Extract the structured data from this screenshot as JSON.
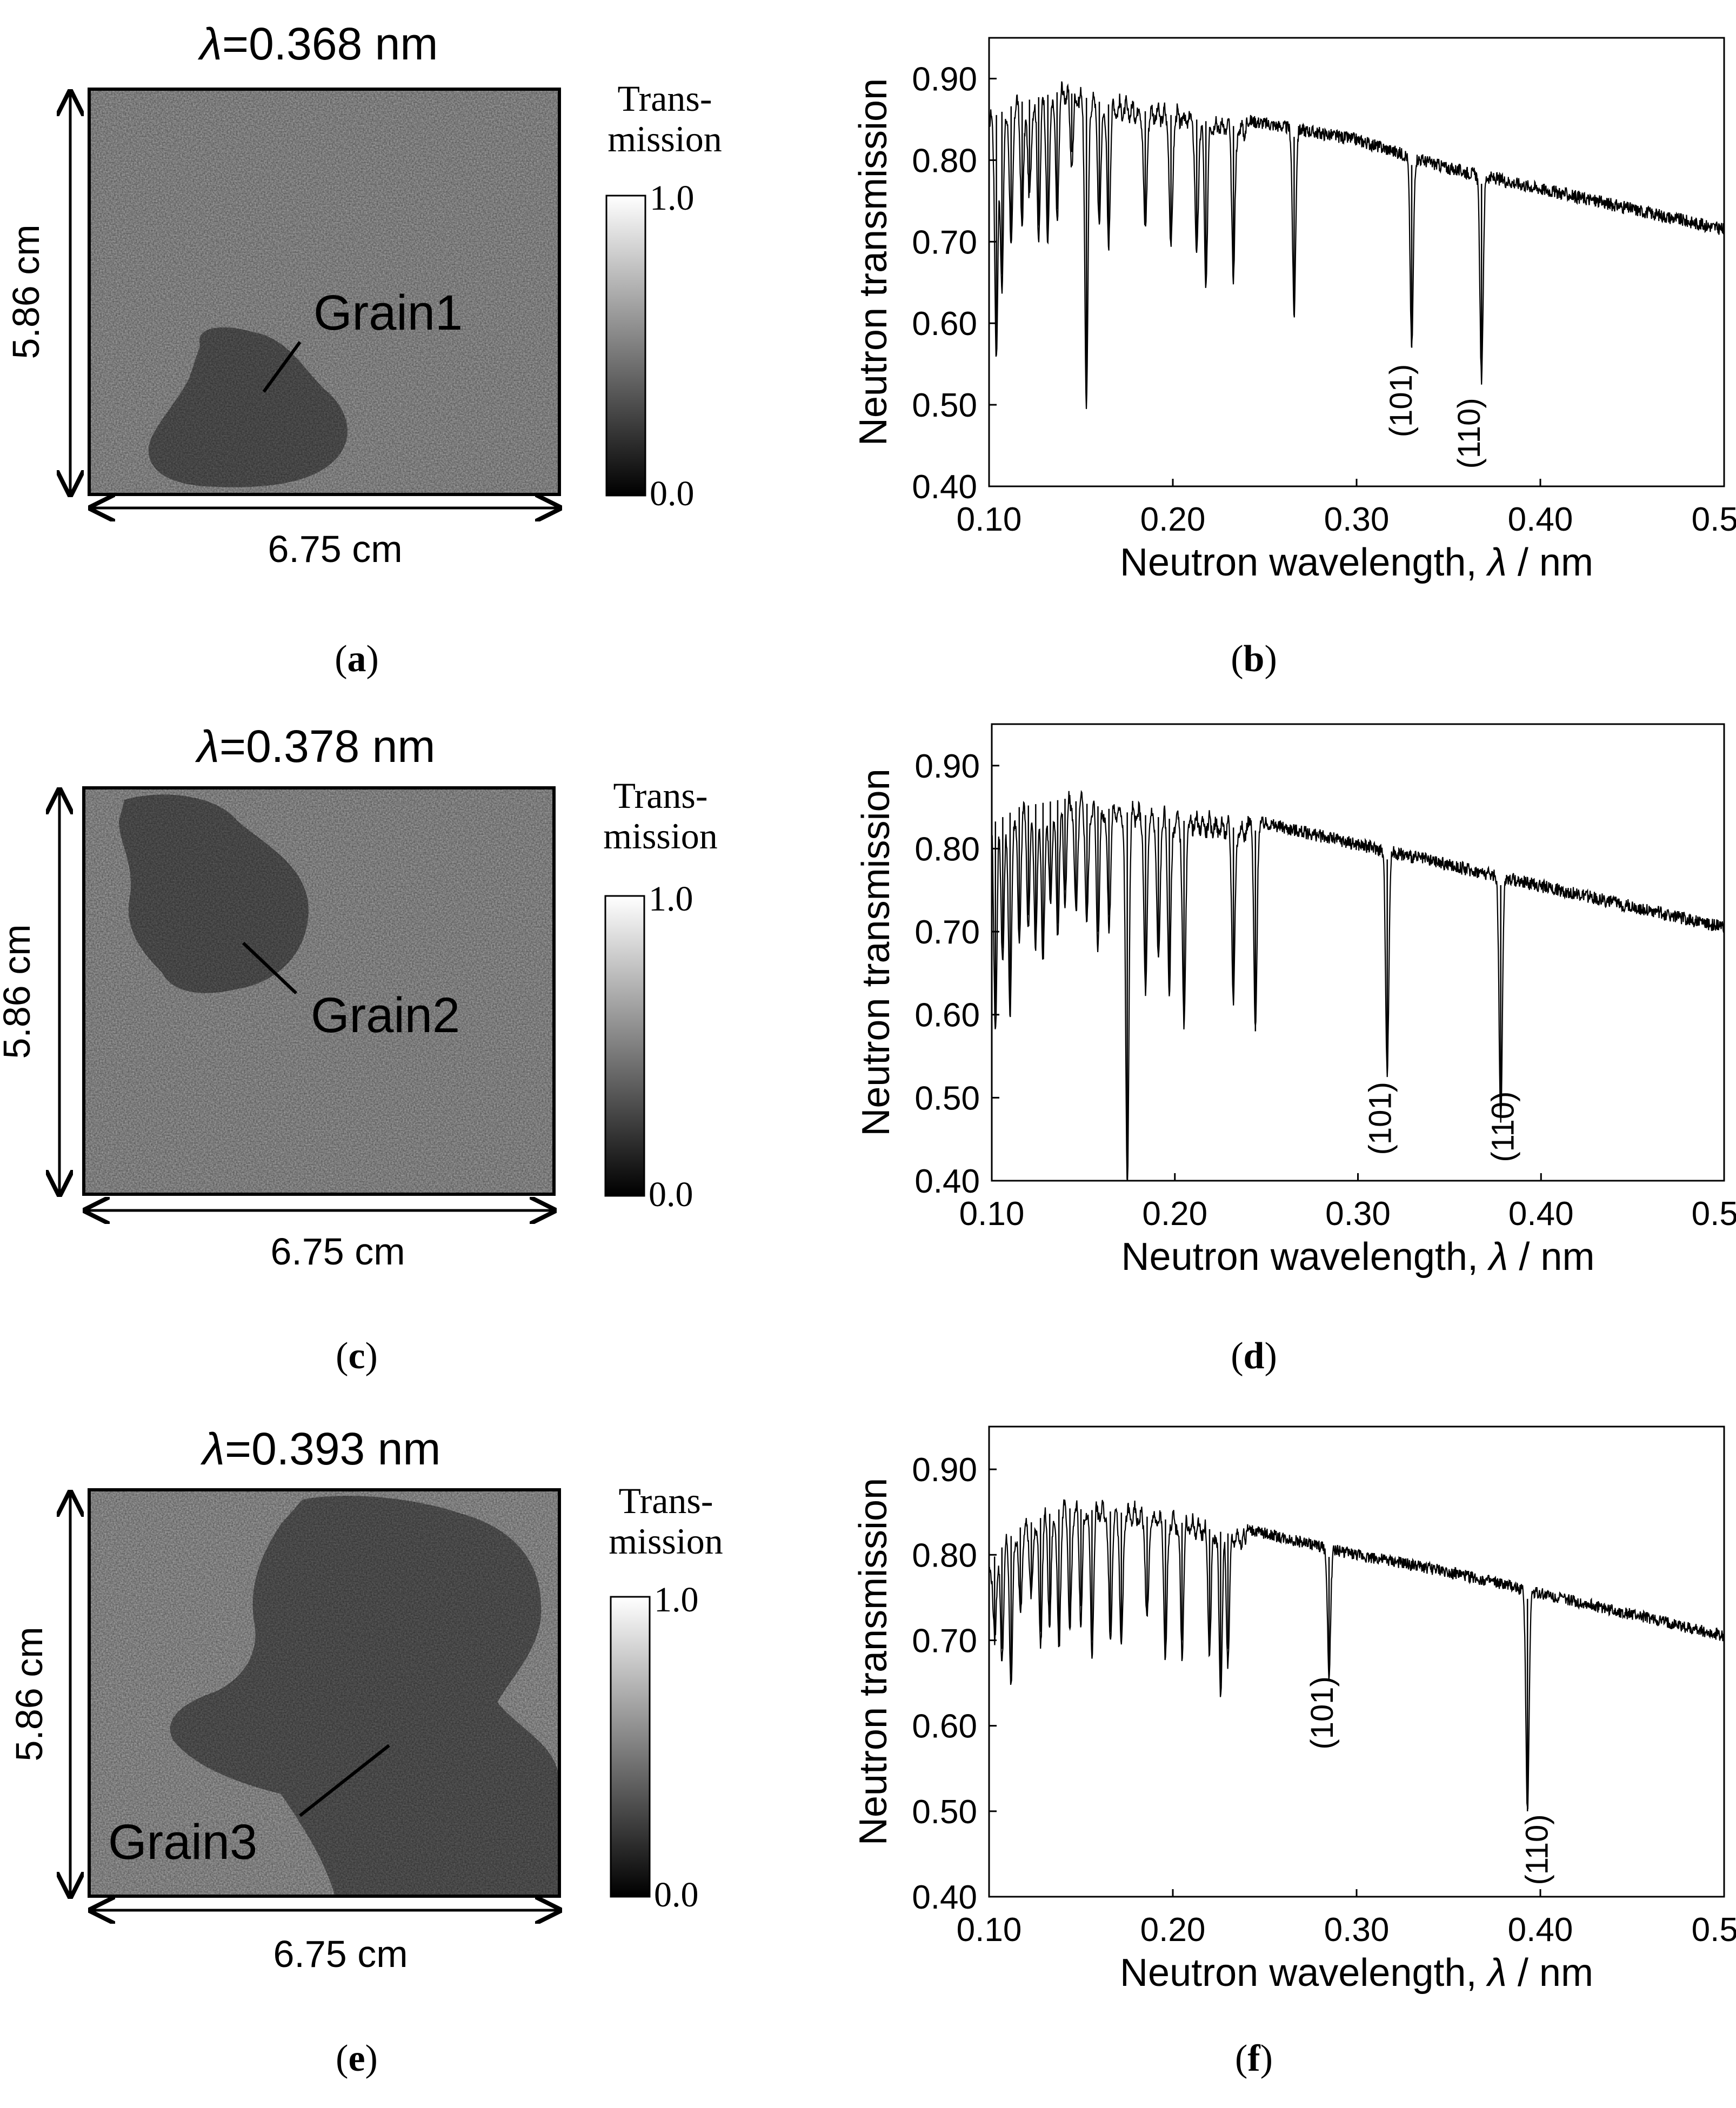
{
  "panels": [
    {
      "id": "a",
      "caption_letter": "a",
      "lambda_symbol": "λ",
      "lambda_value": "=0.368 nm",
      "height_label": "5.86 cm",
      "width_label": "6.75 cm",
      "colorbar_title_1": "Trans-",
      "colorbar_title_2": "mission",
      "colorbar_max": "1.0",
      "colorbar_min": "0.0",
      "grain_label": "Grain1"
    },
    {
      "id": "c",
      "caption_letter": "c",
      "lambda_symbol": "λ",
      "lambda_value": "=0.378 nm",
      "height_label": "5.86 cm",
      "width_label": "6.75 cm",
      "colorbar_title_1": "Trans-",
      "colorbar_title_2": "mission",
      "colorbar_max": "1.0",
      "colorbar_min": "0.0",
      "grain_label": "Grain2"
    },
    {
      "id": "e",
      "caption_letter": "e",
      "lambda_symbol": "λ",
      "lambda_value": "=0.393 nm",
      "height_label": "5.86 cm",
      "width_label": "6.75 cm",
      "colorbar_title_1": "Trans-",
      "colorbar_title_2": "mission",
      "colorbar_max": "1.0",
      "colorbar_min": "0.0",
      "grain_label": "Grain3"
    }
  ],
  "chart_data": [
    {
      "type": "line",
      "id": "b",
      "caption_letter": "b",
      "xlabel_main": "Neutron wavelength, ",
      "xlabel_symbol": "λ",
      "xlabel_unit": " / nm",
      "ylabel": "Neutron transmission",
      "xlim": [
        0.1,
        0.5
      ],
      "ylim": [
        0.4,
        0.95
      ],
      "xticks": [
        "0.10",
        "0.20",
        "0.30",
        "0.40",
        "0.50"
      ],
      "yticks": [
        "0.40",
        "0.50",
        "0.60",
        "0.70",
        "0.80",
        "0.90"
      ],
      "x_anchor": [
        0.1,
        0.115,
        0.14,
        0.17,
        0.2,
        0.25,
        0.3,
        0.35,
        0.4,
        0.45,
        0.5
      ],
      "y_anchor": [
        0.86,
        0.88,
        0.895,
        0.875,
        0.865,
        0.845,
        0.825,
        0.79,
        0.765,
        0.74,
        0.715
      ],
      "noise": 0.008,
      "dips": [
        {
          "x": 0.104,
          "y": 0.57
        },
        {
          "x": 0.107,
          "y": 0.66
        },
        {
          "x": 0.112,
          "y": 0.7
        },
        {
          "x": 0.118,
          "y": 0.73
        },
        {
          "x": 0.122,
          "y": 0.76
        },
        {
          "x": 0.127,
          "y": 0.72
        },
        {
          "x": 0.132,
          "y": 0.71
        },
        {
          "x": 0.137,
          "y": 0.74
        },
        {
          "x": 0.145,
          "y": 0.81
        },
        {
          "x": 0.153,
          "y": 0.51
        },
        {
          "x": 0.16,
          "y": 0.73
        },
        {
          "x": 0.165,
          "y": 0.71
        },
        {
          "x": 0.185,
          "y": 0.72
        },
        {
          "x": 0.199,
          "y": 0.7
        },
        {
          "x": 0.213,
          "y": 0.69
        },
        {
          "x": 0.218,
          "y": 0.66
        },
        {
          "x": 0.233,
          "y": 0.67
        },
        {
          "x": 0.266,
          "y": 0.61
        },
        {
          "x": 0.33,
          "y": 0.57
        },
        {
          "x": 0.368,
          "y": 0.53
        }
      ],
      "peak_labels": [
        {
          "text": "(101)",
          "x": 0.33,
          "y": 0.505
        },
        {
          "text": "(110)",
          "x": 0.367,
          "y": 0.465
        }
      ]
    },
    {
      "type": "line",
      "id": "d",
      "caption_letter": "d",
      "xlabel_main": "Neutron wavelength, ",
      "xlabel_symbol": "λ",
      "xlabel_unit": " / nm",
      "ylabel": "Neutron transmission",
      "xlim": [
        0.1,
        0.5
      ],
      "ylim": [
        0.4,
        0.95
      ],
      "xticks": [
        "0.10",
        "0.20",
        "0.30",
        "0.40",
        "0.50"
      ],
      "yticks": [
        "0.40",
        "0.50",
        "0.60",
        "0.70",
        "0.80",
        "0.90"
      ],
      "x_anchor": [
        0.1,
        0.115,
        0.14,
        0.17,
        0.2,
        0.25,
        0.3,
        0.35,
        0.4,
        0.45,
        0.5
      ],
      "y_anchor": [
        0.84,
        0.86,
        0.87,
        0.855,
        0.845,
        0.83,
        0.805,
        0.78,
        0.755,
        0.73,
        0.705
      ],
      "noise": 0.008,
      "dips": [
        {
          "x": 0.102,
          "y": 0.6
        },
        {
          "x": 0.106,
          "y": 0.68
        },
        {
          "x": 0.11,
          "y": 0.61
        },
        {
          "x": 0.115,
          "y": 0.7
        },
        {
          "x": 0.12,
          "y": 0.72
        },
        {
          "x": 0.124,
          "y": 0.69
        },
        {
          "x": 0.128,
          "y": 0.67
        },
        {
          "x": 0.132,
          "y": 0.74
        },
        {
          "x": 0.136,
          "y": 0.71
        },
        {
          "x": 0.14,
          "y": 0.75
        },
        {
          "x": 0.146,
          "y": 0.73
        },
        {
          "x": 0.152,
          "y": 0.72
        },
        {
          "x": 0.158,
          "y": 0.7
        },
        {
          "x": 0.164,
          "y": 0.72
        },
        {
          "x": 0.174,
          "y": 0.4
        },
        {
          "x": 0.184,
          "y": 0.63
        },
        {
          "x": 0.191,
          "y": 0.67
        },
        {
          "x": 0.197,
          "y": 0.64
        },
        {
          "x": 0.205,
          "y": 0.59
        },
        {
          "x": 0.232,
          "y": 0.63
        },
        {
          "x": 0.244,
          "y": 0.58
        },
        {
          "x": 0.316,
          "y": 0.53
        },
        {
          "x": 0.378,
          "y": 0.47
        }
      ],
      "peak_labels": [
        {
          "text": "(101)",
          "x": 0.318,
          "y": 0.475
        },
        {
          "text": "(110)",
          "x": 0.385,
          "y": 0.465
        }
      ]
    },
    {
      "type": "line",
      "id": "f",
      "caption_letter": "f",
      "xlabel_main": "Neutron wavelength, ",
      "xlabel_symbol": "λ",
      "xlabel_unit": " / nm",
      "ylabel": "Neutron transmission",
      "xlim": [
        0.1,
        0.5
      ],
      "ylim": [
        0.4,
        0.95
      ],
      "xticks": [
        "0.10",
        "0.20",
        "0.30",
        "0.40",
        "0.50"
      ],
      "yticks": [
        "0.40",
        "0.50",
        "0.60",
        "0.70",
        "0.80",
        "0.90"
      ],
      "x_anchor": [
        0.1,
        0.115,
        0.14,
        0.17,
        0.2,
        0.25,
        0.3,
        0.35,
        0.4,
        0.45,
        0.5
      ],
      "y_anchor": [
        0.8,
        0.84,
        0.865,
        0.86,
        0.85,
        0.825,
        0.8,
        0.78,
        0.755,
        0.73,
        0.705
      ],
      "noise": 0.007,
      "dips": [
        {
          "x": 0.103,
          "y": 0.71
        },
        {
          "x": 0.107,
          "y": 0.69
        },
        {
          "x": 0.112,
          "y": 0.66
        },
        {
          "x": 0.117,
          "y": 0.74
        },
        {
          "x": 0.123,
          "y": 0.76
        },
        {
          "x": 0.128,
          "y": 0.71
        },
        {
          "x": 0.133,
          "y": 0.73
        },
        {
          "x": 0.138,
          "y": 0.7
        },
        {
          "x": 0.144,
          "y": 0.72
        },
        {
          "x": 0.15,
          "y": 0.74
        },
        {
          "x": 0.156,
          "y": 0.7
        },
        {
          "x": 0.166,
          "y": 0.71
        },
        {
          "x": 0.172,
          "y": 0.7
        },
        {
          "x": 0.186,
          "y": 0.73
        },
        {
          "x": 0.196,
          "y": 0.69
        },
        {
          "x": 0.205,
          "y": 0.7
        },
        {
          "x": 0.22,
          "y": 0.7
        },
        {
          "x": 0.226,
          "y": 0.65
        },
        {
          "x": 0.23,
          "y": 0.69
        },
        {
          "x": 0.285,
          "y": 0.66
        },
        {
          "x": 0.393,
          "y": 0.5
        }
      ],
      "peak_labels": [
        {
          "text": "(101)",
          "x": 0.287,
          "y": 0.615
        },
        {
          "text": "(110)",
          "x": 0.404,
          "y": 0.455
        }
      ]
    }
  ],
  "colors": {
    "line": "#000000",
    "axis": "#000000",
    "background": "#ffffff"
  }
}
